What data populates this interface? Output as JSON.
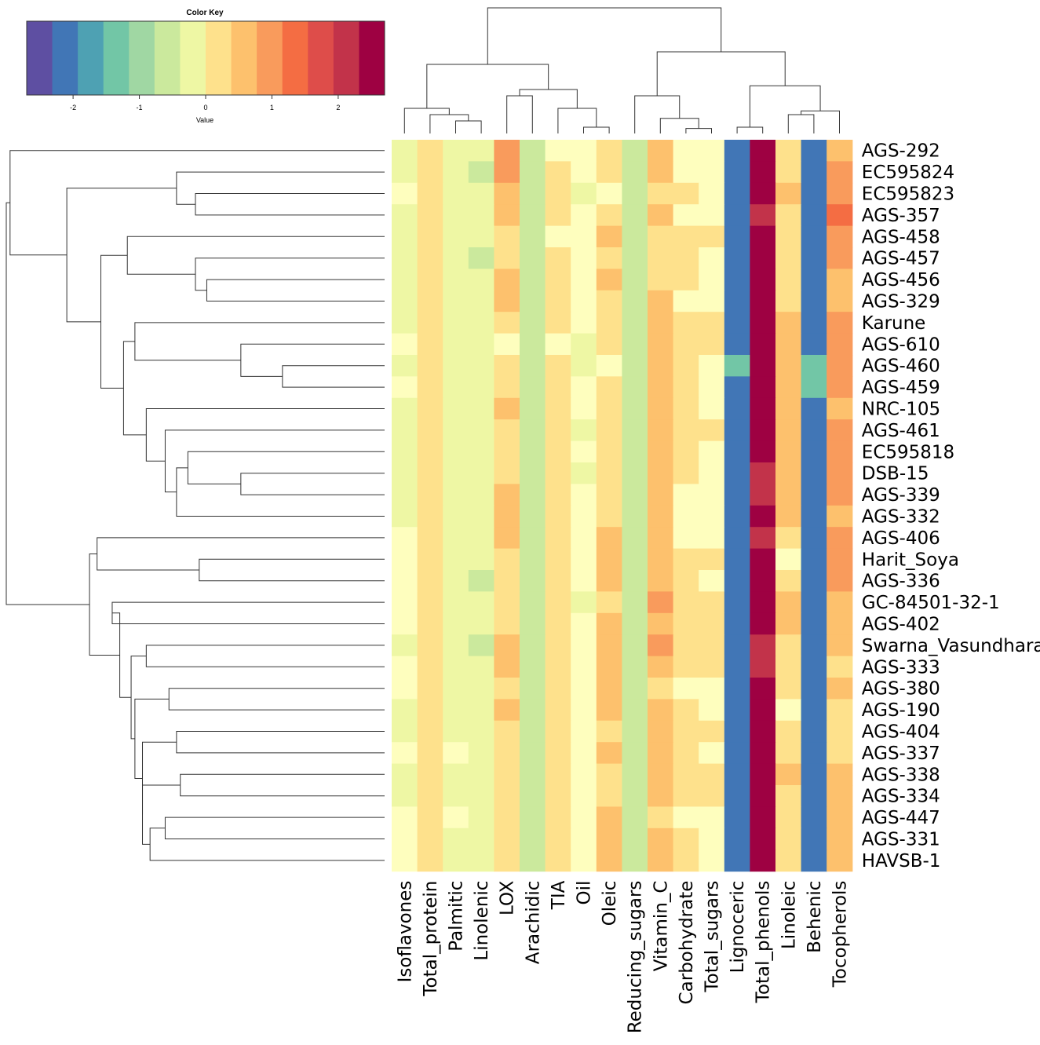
{
  "chart_data": {
    "type": "heatmap",
    "title": "",
    "color_key": {
      "title": "Color Key",
      "xlabel": "Value",
      "range": [
        -2.7,
        2.7
      ],
      "ticks": [
        -2,
        -1,
        0,
        1,
        2
      ],
      "tick_labels": [
        "-2",
        "-1",
        "0",
        "1",
        "2"
      ],
      "bins": 14,
      "palette": [
        "#5E4FA2",
        "#4176B6",
        "#4EA1B3",
        "#72C6A6",
        "#A0D7A3",
        "#CBE99D",
        "#EEF7A4",
        "#FEFEBE",
        "#FEE18C",
        "#FDC16D",
        "#F99B5C",
        "#F46D43",
        "#DE4D4A",
        "#C2334A",
        "#9E0142"
      ]
    },
    "columns": [
      "Isoflavones",
      "Total_protein",
      "Palmitic",
      "Linolenic",
      "LOX",
      "Arachidic",
      "TIA",
      "Oil",
      "Oleic",
      "Reducing_sugars",
      "Vitamin_C",
      "Carbohydrate",
      "Total_sugars",
      "Lignoceric",
      "Total_phenols",
      "Linoleic",
      "Behenic",
      "Tocopherols"
    ],
    "rows": [
      "AGS-292",
      "EC595824",
      "EC595823",
      "AGS-357",
      "AGS-458",
      "AGS-457",
      "AGS-456",
      "AGS-329",
      "Karune",
      "AGS-610",
      "AGS-460",
      "AGS-459",
      "NRC-105",
      "AGS-461",
      "EC595818",
      "DSB-15",
      "AGS-339",
      "AGS-332",
      "AGS-406",
      "Harit_Soya",
      "AGS-336",
      "GC-84501-32-1",
      "AGS-402",
      "Swarna_Vasundhara",
      "AGS-333",
      "AGS-380",
      "AGS-190",
      "AGS-404",
      "AGS-337",
      "AGS-338",
      "AGS-334",
      "AGS-447",
      "AGS-331",
      "HAVSB-1"
    ],
    "values": [
      [
        -0.4,
        0.4,
        -0.4,
        -0.4,
        1.2,
        -0.9,
        0.0,
        0.0,
        0.5,
        -0.9,
        0.8,
        0.0,
        0.0,
        -2.0,
        2.6,
        0.4,
        -2.0,
        0.8
      ],
      [
        -0.4,
        0.4,
        -0.4,
        -0.7,
        1.2,
        -0.9,
        0.4,
        0.0,
        0.5,
        -0.7,
        0.8,
        0.0,
        0.0,
        -2.0,
        2.6,
        0.4,
        -2.0,
        1.2
      ],
      [
        0.0,
        0.4,
        -0.4,
        -0.4,
        0.8,
        -0.9,
        0.4,
        -0.3,
        0.0,
        -0.9,
        0.4,
        0.4,
        0.0,
        -2.0,
        2.6,
        0.8,
        -2.0,
        1.2
      ],
      [
        -0.4,
        0.4,
        -0.4,
        -0.4,
        0.8,
        -0.9,
        0.4,
        0.0,
        0.4,
        -0.9,
        0.8,
        0.0,
        0.0,
        -2.0,
        2.2,
        0.4,
        -2.0,
        1.6
      ],
      [
        -0.4,
        0.4,
        -0.4,
        -0.4,
        0.4,
        -0.9,
        0.0,
        0.0,
        0.8,
        -0.7,
        0.4,
        0.4,
        0.4,
        -2.0,
        2.6,
        0.4,
        -2.0,
        1.2
      ],
      [
        -0.4,
        0.4,
        -0.4,
        -0.7,
        0.4,
        -0.9,
        0.4,
        0.0,
        0.4,
        -0.9,
        0.4,
        0.4,
        0.0,
        -2.0,
        2.6,
        0.4,
        -2.0,
        1.2
      ],
      [
        -0.4,
        0.4,
        -0.4,
        -0.4,
        0.8,
        -0.9,
        0.4,
        0.0,
        0.8,
        -0.9,
        0.4,
        0.4,
        0.0,
        -2.0,
        2.6,
        0.4,
        -2.0,
        0.8
      ],
      [
        -0.4,
        0.4,
        -0.4,
        -0.4,
        0.8,
        -0.9,
        0.4,
        0.0,
        0.4,
        -0.9,
        0.8,
        0.0,
        0.0,
        -2.0,
        2.6,
        0.4,
        -2.0,
        0.8
      ],
      [
        -0.4,
        0.4,
        -0.4,
        -0.4,
        0.4,
        -0.9,
        0.4,
        0.0,
        0.4,
        -0.7,
        0.8,
        0.4,
        0.4,
        -2.0,
        2.6,
        0.8,
        -2.0,
        1.2
      ],
      [
        0.0,
        0.4,
        -0.4,
        -0.4,
        0.0,
        -0.9,
        0.0,
        -0.3,
        0.4,
        -0.7,
        0.8,
        0.4,
        0.4,
        -2.0,
        2.6,
        0.8,
        -2.0,
        1.2
      ],
      [
        -0.3,
        0.4,
        -0.4,
        -0.4,
        0.4,
        -0.9,
        0.4,
        -0.3,
        0.0,
        -0.9,
        0.8,
        0.4,
        0.0,
        -1.3,
        2.6,
        0.8,
        -1.3,
        1.2
      ],
      [
        0.0,
        0.4,
        -0.4,
        -0.4,
        0.4,
        -0.9,
        0.4,
        0.0,
        0.4,
        -0.9,
        0.8,
        0.4,
        0.0,
        -2.0,
        2.6,
        0.8,
        -1.3,
        1.2
      ],
      [
        -0.4,
        0.4,
        -0.4,
        -0.4,
        0.8,
        -0.9,
        0.4,
        0.0,
        0.4,
        -0.9,
        0.8,
        0.4,
        0.0,
        -2.0,
        2.6,
        0.8,
        -2.0,
        0.8
      ],
      [
        -0.4,
        0.4,
        -0.4,
        -0.4,
        0.4,
        -0.9,
        0.4,
        -0.3,
        0.4,
        -0.7,
        0.8,
        0.4,
        0.4,
        -2.0,
        2.6,
        0.8,
        -2.0,
        1.2
      ],
      [
        -0.4,
        0.4,
        -0.4,
        -0.4,
        0.4,
        -0.9,
        0.4,
        0.0,
        0.4,
        -0.9,
        0.8,
        0.4,
        0.0,
        -2.0,
        2.6,
        0.8,
        -2.0,
        1.2
      ],
      [
        -0.4,
        0.4,
        -0.4,
        -0.4,
        0.4,
        -0.9,
        0.4,
        -0.3,
        0.4,
        -0.9,
        0.8,
        0.4,
        0.0,
        -2.0,
        2.2,
        0.8,
        -2.0,
        1.2
      ],
      [
        -0.4,
        0.4,
        -0.4,
        -0.4,
        0.8,
        -0.9,
        0.4,
        0.0,
        0.4,
        -0.9,
        0.8,
        0.0,
        0.0,
        -2.0,
        2.2,
        0.8,
        -2.0,
        1.2
      ],
      [
        -0.4,
        0.4,
        -0.4,
        -0.4,
        0.8,
        -0.9,
        0.4,
        0.0,
        0.4,
        -0.9,
        0.8,
        0.0,
        0.0,
        -2.0,
        2.6,
        0.8,
        -2.0,
        0.8
      ],
      [
        0.0,
        0.4,
        -0.4,
        -0.4,
        0.8,
        -0.9,
        0.4,
        0.0,
        0.8,
        -0.9,
        0.8,
        0.0,
        0.0,
        -2.0,
        2.2,
        0.4,
        -2.0,
        1.2
      ],
      [
        0.0,
        0.4,
        -0.4,
        -0.4,
        0.4,
        -0.9,
        0.4,
        0.0,
        0.8,
        -0.9,
        0.8,
        0.4,
        0.4,
        -2.0,
        2.6,
        0.0,
        -2.0,
        1.2
      ],
      [
        0.0,
        0.4,
        -0.4,
        -0.7,
        0.4,
        -0.9,
        0.4,
        0.0,
        0.8,
        -0.9,
        0.8,
        0.4,
        0.0,
        -2.0,
        2.6,
        0.4,
        -2.0,
        1.2
      ],
      [
        0.0,
        0.4,
        -0.4,
        -0.4,
        0.4,
        -0.9,
        0.4,
        -0.3,
        0.4,
        -0.9,
        1.2,
        0.4,
        0.4,
        -2.0,
        2.6,
        0.8,
        -2.0,
        0.8
      ],
      [
        0.0,
        0.4,
        -0.4,
        -0.4,
        0.4,
        -0.9,
        0.4,
        0.0,
        0.8,
        -0.9,
        0.8,
        0.4,
        0.4,
        -2.0,
        2.6,
        0.8,
        -2.0,
        0.8
      ],
      [
        -0.4,
        0.4,
        -0.4,
        -0.7,
        0.8,
        -0.9,
        0.4,
        0.0,
        0.8,
        -0.7,
        1.2,
        0.4,
        0.4,
        -2.0,
        2.2,
        0.4,
        -2.0,
        0.8
      ],
      [
        0.0,
        0.4,
        -0.4,
        -0.4,
        0.8,
        -0.9,
        0.4,
        0.0,
        0.8,
        -0.9,
        0.8,
        0.4,
        0.4,
        -2.0,
        2.2,
        0.4,
        -2.0,
        0.4
      ],
      [
        0.0,
        0.4,
        -0.4,
        -0.4,
        0.4,
        -0.7,
        0.4,
        0.0,
        0.8,
        -0.9,
        0.4,
        0.0,
        0.0,
        -2.0,
        2.6,
        0.4,
        -2.0,
        0.8
      ],
      [
        -0.4,
        0.4,
        -0.4,
        -0.4,
        0.8,
        -0.9,
        0.4,
        0.0,
        0.8,
        -0.9,
        0.8,
        0.4,
        0.0,
        -2.0,
        2.6,
        0.0,
        -2.0,
        0.4
      ],
      [
        -0.4,
        0.4,
        -0.4,
        -0.4,
        0.4,
        -0.9,
        0.4,
        0.0,
        0.4,
        -0.9,
        0.8,
        0.4,
        0.4,
        -2.0,
        2.6,
        0.4,
        -2.0,
        0.4
      ],
      [
        0.0,
        0.4,
        0.0,
        -0.4,
        0.4,
        -0.9,
        0.4,
        0.0,
        0.8,
        -0.9,
        0.8,
        0.4,
        0.0,
        -2.0,
        2.6,
        0.4,
        -2.0,
        0.4
      ],
      [
        -0.4,
        0.4,
        -0.4,
        -0.4,
        0.4,
        -0.9,
        0.4,
        0.0,
        0.4,
        -0.9,
        0.8,
        0.4,
        0.4,
        -2.0,
        2.6,
        0.8,
        -2.0,
        0.8
      ],
      [
        -0.4,
        0.4,
        -0.4,
        -0.4,
        0.4,
        -0.9,
        0.4,
        0.0,
        0.4,
        -0.7,
        0.8,
        0.4,
        0.4,
        -2.0,
        2.6,
        0.4,
        -2.0,
        0.8
      ],
      [
        0.0,
        0.4,
        0.0,
        -0.4,
        0.4,
        -0.9,
        0.4,
        0.0,
        0.8,
        -0.9,
        0.4,
        0.0,
        0.0,
        -2.0,
        2.6,
        0.4,
        -2.0,
        0.8
      ],
      [
        0.0,
        0.4,
        -0.4,
        -0.4,
        0.4,
        -0.9,
        0.4,
        0.0,
        0.8,
        -0.9,
        0.8,
        0.4,
        0.0,
        -2.0,
        2.6,
        0.4,
        -2.0,
        0.8
      ],
      [
        0.0,
        0.4,
        -0.4,
        -0.4,
        0.4,
        -0.9,
        0.4,
        0.0,
        0.8,
        -0.9,
        0.8,
        0.4,
        0.0,
        -2.0,
        2.6,
        0.4,
        -2.0,
        0.8
      ]
    ]
  }
}
